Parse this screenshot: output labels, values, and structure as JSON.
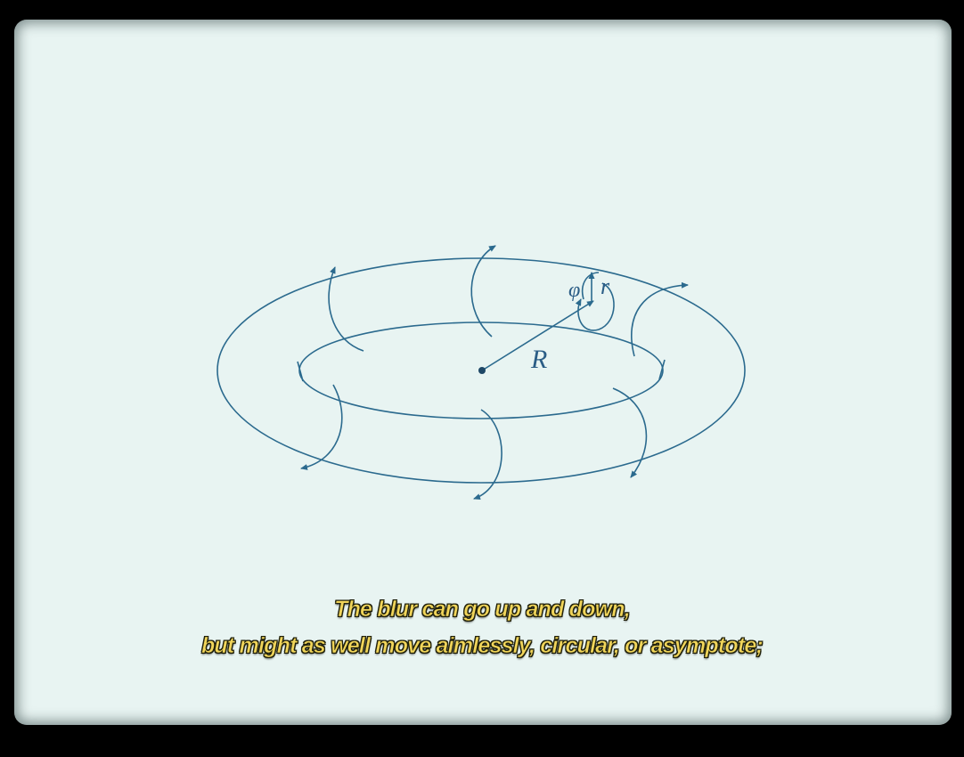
{
  "diagram": {
    "labels": {
      "major_radius": "R",
      "minor_radius": "r",
      "angle": "φ"
    },
    "colors": {
      "stroke": "#2b6a8e",
      "paper": "#e8f4f2",
      "subtitle": "#f1d55a"
    }
  },
  "subtitles": {
    "line1": "The blur can go up and down,",
    "line2": "but might as well move aimlessly, circular, or asymptote;"
  }
}
